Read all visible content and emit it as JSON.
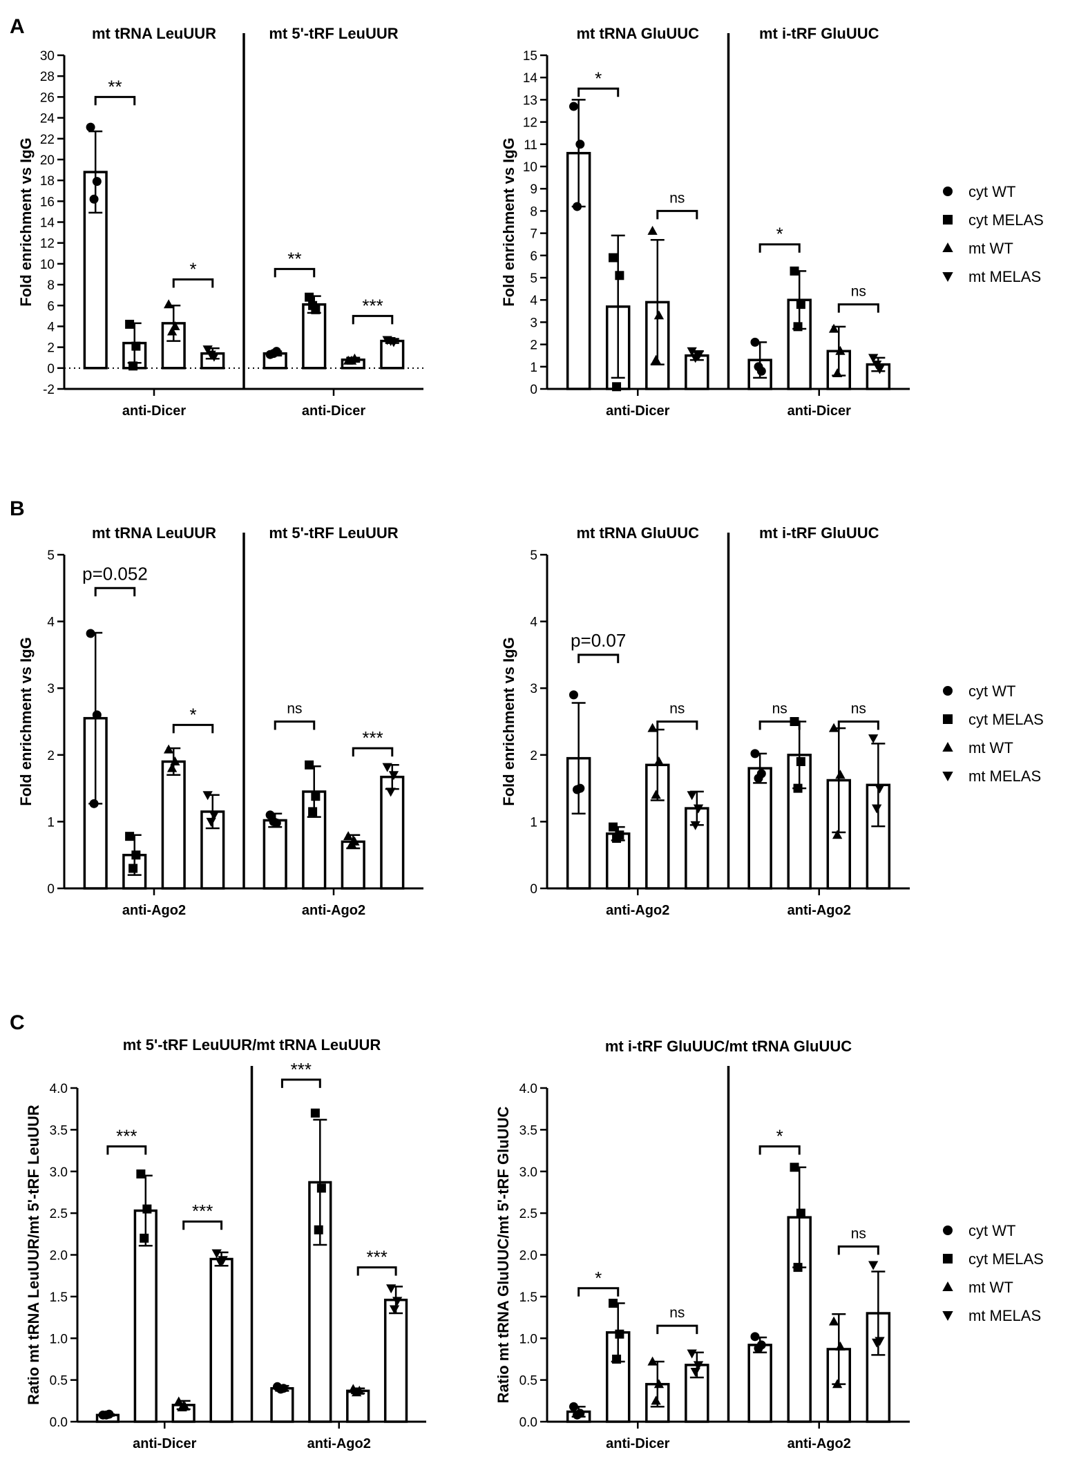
{
  "panels": [
    {
      "letter": "A",
      "charts": [
        0,
        1
      ]
    },
    {
      "letter": "B",
      "charts": [
        2,
        3
      ]
    },
    {
      "letter": "C",
      "charts": [
        4,
        5
      ]
    }
  ],
  "legend_entries": [
    {
      "label": "cyt WT",
      "marker": "circle"
    },
    {
      "label": "cyt MELAS",
      "marker": "square"
    },
    {
      "label": "mt WT",
      "marker": "triangle-up"
    },
    {
      "label": "mt MELAS",
      "marker": "triangle-down"
    }
  ],
  "chart_data": [
    {
      "type": "bar",
      "panel": "A",
      "ylabel": "Fold enrichment vs IgG",
      "ylim": [
        -2,
        30
      ],
      "yticks": [
        -2,
        0,
        2,
        4,
        6,
        8,
        10,
        12,
        14,
        16,
        18,
        20,
        22,
        24,
        26,
        28,
        30
      ],
      "zero_line": true,
      "groups": [
        {
          "title": "mt tRNA LeuUUR",
          "label": "anti-Dicer",
          "bars": [
            {
              "series": "cyt WT",
              "mean": 18.8,
              "sd": 3.9,
              "points": [
                23.1,
                17.9,
                16.2
              ]
            },
            {
              "series": "cyt MELAS",
              "mean": 2.4,
              "sd": 1.9,
              "points": [
                4.2,
                2.1,
                0.2
              ]
            },
            {
              "series": "mt WT",
              "mean": 4.3,
              "sd": 1.7,
              "points": [
                6.1,
                4.0,
                3.5
              ]
            },
            {
              "series": "mt MELAS",
              "mean": 1.4,
              "sd": 0.5,
              "points": [
                1.8,
                1.1,
                1.3
              ]
            }
          ],
          "comparisons": [
            {
              "bars": [
                0,
                1
              ],
              "label": "**",
              "y": 26
            },
            {
              "bars": [
                2,
                3
              ],
              "label": "*",
              "y": 8.5
            }
          ]
        },
        {
          "title": "mt 5'-tRF LeuUUR",
          "label": "anti-Dicer",
          "bars": [
            {
              "series": "cyt WT",
              "mean": 1.4,
              "sd": 0.2,
              "points": [
                1.3,
                1.6,
                1.4
              ]
            },
            {
              "series": "cyt MELAS",
              "mean": 6.1,
              "sd": 0.8,
              "points": [
                6.8,
                5.6,
                6.0
              ]
            },
            {
              "series": "mt WT",
              "mean": 0.8,
              "sd": 0.2,
              "points": [
                0.7,
                0.9,
                0.7
              ]
            },
            {
              "series": "mt MELAS",
              "mean": 2.6,
              "sd": 0.2,
              "points": [
                2.7,
                2.5,
                2.6
              ]
            }
          ],
          "comparisons": [
            {
              "bars": [
                0,
                1
              ],
              "label": "**",
              "y": 9.5
            },
            {
              "bars": [
                2,
                3
              ],
              "label": "***",
              "y": 5
            }
          ]
        }
      ]
    },
    {
      "type": "bar",
      "panel": "A",
      "ylabel": "Fold enrichment vs IgG",
      "ylim": [
        0,
        15
      ],
      "yticks": [
        0,
        1,
        2,
        3,
        4,
        5,
        6,
        7,
        8,
        9,
        10,
        11,
        12,
        13,
        14,
        15
      ],
      "zero_line": false,
      "groups": [
        {
          "title": "mt tRNA GluUUC",
          "label": "anti-Dicer",
          "bars": [
            {
              "series": "cyt WT",
              "mean": 10.6,
              "sd": 2.4,
              "points": [
                12.7,
                11.0,
                8.2
              ]
            },
            {
              "series": "cyt MELAS",
              "mean": 3.7,
              "sd": 3.2,
              "points": [
                5.9,
                5.1,
                0.1
              ]
            },
            {
              "series": "mt WT",
              "mean": 3.9,
              "sd": 2.8,
              "points": [
                7.1,
                3.3,
                1.3
              ]
            },
            {
              "series": "mt MELAS",
              "mean": 1.5,
              "sd": 0.2,
              "points": [
                1.7,
                1.5,
                1.4
              ]
            }
          ],
          "comparisons": [
            {
              "bars": [
                0,
                1
              ],
              "label": "*",
              "y": 13.5
            },
            {
              "bars": [
                2,
                3
              ],
              "label": "ns",
              "y": 8
            }
          ]
        },
        {
          "title": "mt i-tRF GluUUC",
          "label": "anti-Dicer",
          "bars": [
            {
              "series": "cyt WT",
              "mean": 1.3,
              "sd": 0.8,
              "points": [
                2.1,
                0.8,
                1.0
              ]
            },
            {
              "series": "cyt MELAS",
              "mean": 4.0,
              "sd": 1.3,
              "points": [
                5.3,
                3.8,
                2.8
              ]
            },
            {
              "series": "mt WT",
              "mean": 1.7,
              "sd": 1.1,
              "points": [
                2.7,
                1.7,
                0.7
              ]
            },
            {
              "series": "mt MELAS",
              "mean": 1.1,
              "sd": 0.3,
              "points": [
                1.4,
                0.9,
                1.1
              ]
            }
          ],
          "comparisons": [
            {
              "bars": [
                0,
                1
              ],
              "label": "*",
              "y": 6.5
            },
            {
              "bars": [
                2,
                3
              ],
              "label": "ns",
              "y": 3.8
            }
          ]
        }
      ]
    },
    {
      "type": "bar",
      "panel": "B",
      "ylabel": "Fold enrichment vs IgG",
      "ylim": [
        0,
        5
      ],
      "yticks": [
        0,
        1,
        2,
        3,
        4,
        5
      ],
      "zero_line": false,
      "groups": [
        {
          "title": "mt tRNA LeuUUR",
          "label": "anti-Ago2",
          "bars": [
            {
              "series": "cyt WT",
              "mean": 2.55,
              "sd": 1.28,
              "points": [
                3.82,
                2.6,
                1.27
              ]
            },
            {
              "series": "cyt MELAS",
              "mean": 0.5,
              "sd": 0.3,
              "points": [
                0.78,
                0.5,
                0.3
              ]
            },
            {
              "series": "mt WT",
              "mean": 1.9,
              "sd": 0.2,
              "points": [
                2.08,
                1.9,
                1.8
              ]
            },
            {
              "series": "mt MELAS",
              "mean": 1.15,
              "sd": 0.25,
              "points": [
                1.4,
                1.1,
                1.0
              ]
            }
          ],
          "comparisons": [
            {
              "bars": [
                0,
                1
              ],
              "label": "p=0.052",
              "y": 4.5
            },
            {
              "bars": [
                2,
                3
              ],
              "label": "*",
              "y": 2.45
            }
          ]
        },
        {
          "title": "mt 5'-tRF LeuUUR",
          "label": "anti-Ago2",
          "bars": [
            {
              "series": "cyt WT",
              "mean": 1.02,
              "sd": 0.1,
              "points": [
                1.1,
                0.98,
                1.0
              ]
            },
            {
              "series": "cyt MELAS",
              "mean": 1.45,
              "sd": 0.38,
              "points": [
                1.85,
                1.38,
                1.15
              ]
            },
            {
              "series": "mt WT",
              "mean": 0.7,
              "sd": 0.1,
              "points": [
                0.78,
                0.7,
                0.66
              ]
            },
            {
              "series": "mt MELAS",
              "mean": 1.67,
              "sd": 0.18,
              "points": [
                1.82,
                1.7,
                1.45
              ]
            }
          ],
          "comparisons": [
            {
              "bars": [
                0,
                1
              ],
              "label": "ns",
              "y": 2.5
            },
            {
              "bars": [
                2,
                3
              ],
              "label": "***",
              "y": 2.1
            }
          ]
        }
      ]
    },
    {
      "type": "bar",
      "panel": "B",
      "ylabel": "Fold enrichment vs IgG",
      "ylim": [
        0,
        5
      ],
      "yticks": [
        0,
        1,
        2,
        3,
        4,
        5
      ],
      "zero_line": false,
      "groups": [
        {
          "title": "mt tRNA GluUUC",
          "label": "anti-Ago2",
          "bars": [
            {
              "series": "cyt WT",
              "mean": 1.95,
              "sd": 0.83,
              "points": [
                2.9,
                1.5,
                1.48
              ]
            },
            {
              "series": "cyt MELAS",
              "mean": 0.82,
              "sd": 0.1,
              "points": [
                0.92,
                0.8,
                0.75
              ]
            },
            {
              "series": "mt WT",
              "mean": 1.85,
              "sd": 0.53,
              "points": [
                2.4,
                1.9,
                1.4
              ]
            },
            {
              "series": "mt MELAS",
              "mean": 1.2,
              "sd": 0.25,
              "points": [
                1.4,
                1.2,
                0.95
              ]
            }
          ],
          "comparisons": [
            {
              "bars": [
                0,
                1
              ],
              "label": "p=0.07",
              "y": 3.5
            },
            {
              "bars": [
                2,
                3
              ],
              "label": "ns",
              "y": 2.5
            }
          ]
        },
        {
          "title": "mt i-tRF GluUUC",
          "label": "anti-Ago2",
          "bars": [
            {
              "series": "cyt WT",
              "mean": 1.8,
              "sd": 0.22,
              "points": [
                2.02,
                1.72,
                1.65
              ]
            },
            {
              "series": "cyt MELAS",
              "mean": 2.0,
              "sd": 0.5,
              "points": [
                2.5,
                1.9,
                1.5
              ]
            },
            {
              "series": "mt WT",
              "mean": 1.62,
              "sd": 0.78,
              "points": [
                2.4,
                1.7,
                0.8
              ]
            },
            {
              "series": "mt MELAS",
              "mean": 1.55,
              "sd": 0.62,
              "points": [
                2.25,
                1.5,
                1.2
              ]
            }
          ],
          "comparisons": [
            {
              "bars": [
                0,
                1
              ],
              "label": "ns",
              "y": 2.5
            },
            {
              "bars": [
                2,
                3
              ],
              "label": "ns",
              "y": 2.5
            }
          ]
        }
      ]
    },
    {
      "type": "bar",
      "panel": "C",
      "title": "mt 5'-tRF LeuUUR/mt tRNA LeuUUR",
      "ylabel": "Ratio mt tRNA LeuUUR/mt 5'-tRF LeuUUR",
      "ylim": [
        0,
        4
      ],
      "yticks": [
        0.0,
        0.5,
        1.0,
        1.5,
        2.0,
        2.5,
        3.0,
        3.5,
        4.0
      ],
      "ytick_labels": [
        "0.0",
        "0.5",
        "1.0",
        "1.5",
        "2.0",
        "2.5",
        "3.0",
        "3.5",
        "4.0"
      ],
      "zero_line": false,
      "groups": [
        {
          "title": "",
          "label": "anti-Dicer",
          "bars": [
            {
              "series": "cyt WT",
              "mean": 0.08,
              "sd": 0.01,
              "points": [
                0.08,
                0.09,
                0.08
              ]
            },
            {
              "series": "cyt MELAS",
              "mean": 2.53,
              "sd": 0.42,
              "points": [
                2.97,
                2.55,
                2.2
              ]
            },
            {
              "series": "mt WT",
              "mean": 0.2,
              "sd": 0.05,
              "points": [
                0.24,
                0.18,
                0.17
              ]
            },
            {
              "series": "mt MELAS",
              "mean": 1.95,
              "sd": 0.08,
              "points": [
                2.02,
                1.94,
                1.92
              ]
            }
          ],
          "comparisons": [
            {
              "bars": [
                0,
                1
              ],
              "label": "***",
              "y": 3.3
            },
            {
              "bars": [
                2,
                3
              ],
              "label": "***",
              "y": 2.4
            }
          ]
        },
        {
          "title": "",
          "label": "anti-Ago2",
          "bars": [
            {
              "series": "cyt WT",
              "mean": 0.4,
              "sd": 0.03,
              "points": [
                0.42,
                0.4,
                0.39
              ]
            },
            {
              "series": "cyt MELAS",
              "mean": 2.87,
              "sd": 0.75,
              "points": [
                3.7,
                2.8,
                2.3
              ]
            },
            {
              "series": "mt WT",
              "mean": 0.37,
              "sd": 0.03,
              "points": [
                0.39,
                0.37,
                0.35
              ]
            },
            {
              "series": "mt MELAS",
              "mean": 1.46,
              "sd": 0.16,
              "points": [
                1.6,
                1.45,
                1.35
              ]
            }
          ],
          "comparisons": [
            {
              "bars": [
                0,
                1
              ],
              "label": "***",
              "y": 4.1
            },
            {
              "bars": [
                2,
                3
              ],
              "label": "***",
              "y": 1.85
            }
          ]
        }
      ]
    },
    {
      "type": "bar",
      "panel": "C",
      "title": "mt i-tRF GluUUC/mt tRNA GluUUC",
      "ylabel": "Ratio mt tRNA GluUUC/mt 5'-tRF GluUUC",
      "ylim": [
        0,
        4
      ],
      "yticks": [
        0.0,
        0.5,
        1.0,
        1.5,
        2.0,
        2.5,
        3.0,
        3.5,
        4.0
      ],
      "ytick_labels": [
        "0.0",
        "0.5",
        "1.0",
        "1.5",
        "2.0",
        "2.5",
        "3.0",
        "3.5",
        "4.0"
      ],
      "zero_line": false,
      "groups": [
        {
          "title": "",
          "label": "anti-Dicer",
          "bars": [
            {
              "series": "cyt WT",
              "mean": 0.12,
              "sd": 0.06,
              "points": [
                0.18,
                0.1,
                0.08
              ]
            },
            {
              "series": "cyt MELAS",
              "mean": 1.07,
              "sd": 0.35,
              "points": [
                1.42,
                1.05,
                0.75
              ]
            },
            {
              "series": "mt WT",
              "mean": 0.45,
              "sd": 0.27,
              "points": [
                0.72,
                0.45,
                0.25
              ]
            },
            {
              "series": "mt MELAS",
              "mean": 0.68,
              "sd": 0.15,
              "points": [
                0.82,
                0.68,
                0.6
              ]
            }
          ],
          "comparisons": [
            {
              "bars": [
                0,
                1
              ],
              "label": "*",
              "y": 1.6
            },
            {
              "bars": [
                2,
                3
              ],
              "label": "ns",
              "y": 1.15
            }
          ]
        },
        {
          "title": "",
          "label": "anti-Ago2",
          "bars": [
            {
              "series": "cyt WT",
              "mean": 0.92,
              "sd": 0.09,
              "points": [
                1.02,
                0.92,
                0.88
              ]
            },
            {
              "series": "cyt MELAS",
              "mean": 2.45,
              "sd": 0.6,
              "points": [
                3.05,
                2.5,
                1.85
              ]
            },
            {
              "series": "mt WT",
              "mean": 0.87,
              "sd": 0.42,
              "points": [
                1.2,
                0.9,
                0.45
              ]
            },
            {
              "series": "mt MELAS",
              "mean": 1.3,
              "sd": 0.5,
              "points": [
                1.88,
                0.97,
                0.95
              ]
            }
          ],
          "comparisons": [
            {
              "bars": [
                0,
                1
              ],
              "label": "*",
              "y": 3.3
            },
            {
              "bars": [
                2,
                3
              ],
              "label": "ns",
              "y": 2.1
            }
          ]
        }
      ]
    }
  ]
}
